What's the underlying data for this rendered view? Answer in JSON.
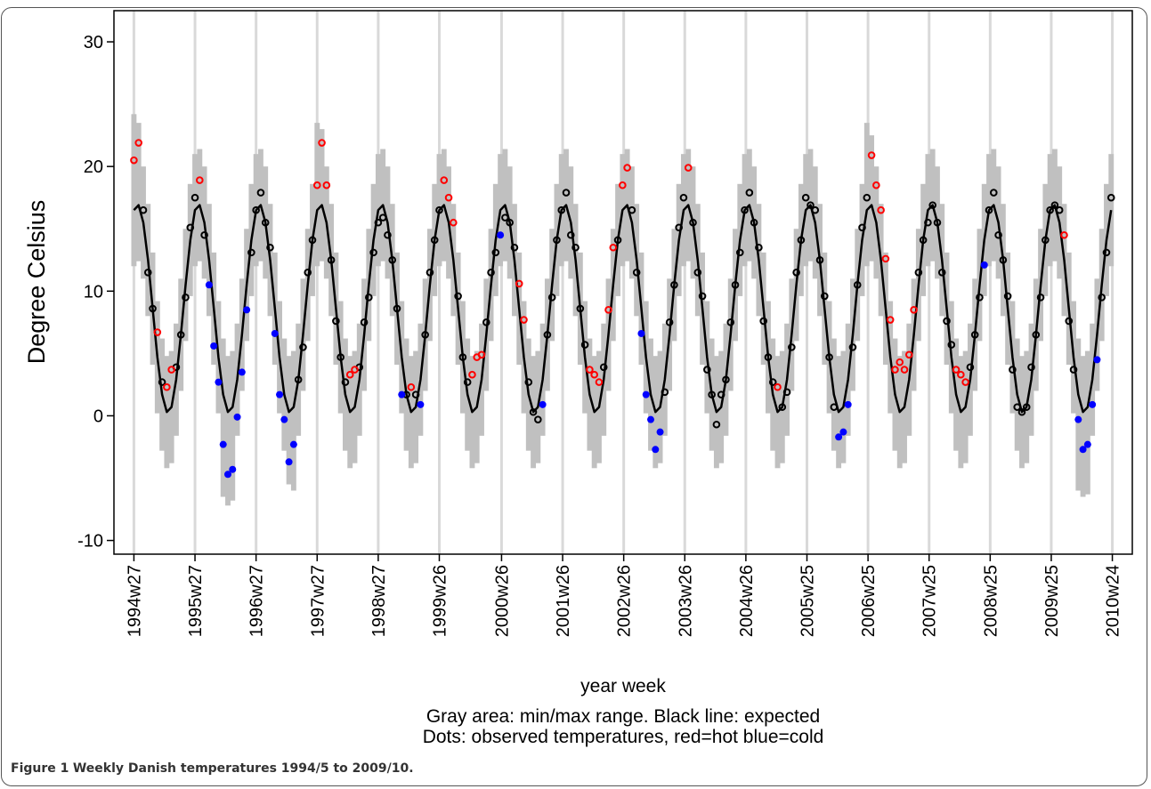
{
  "chart_data": {
    "type": "line",
    "y_label": "Degree Celsius",
    "x_label": "year week",
    "notes": [
      "Gray area: min/max range. Black line: expected",
      "Dots: observed temperatures, red=hot blue=cold"
    ],
    "xlim": [
      -17,
      850
    ],
    "ylim": [
      -11.1,
      32.5
    ],
    "grid": "x",
    "grid_color": "#d9d9d9",
    "xticks": [
      {
        "value": 0,
        "label": "1994w27"
      },
      {
        "value": 52,
        "label": "1995w27"
      },
      {
        "value": 104,
        "label": "1996w27"
      },
      {
        "value": 156,
        "label": "1997w27"
      },
      {
        "value": 208,
        "label": "1998w27"
      },
      {
        "value": 260,
        "label": "1999w26"
      },
      {
        "value": 313,
        "label": "2000w26"
      },
      {
        "value": 365,
        "label": "2001w26"
      },
      {
        "value": 417,
        "label": "2002w26"
      },
      {
        "value": 469,
        "label": "2003w26"
      },
      {
        "value": 521,
        "label": "2004w26"
      },
      {
        "value": 573,
        "label": "2005w25"
      },
      {
        "value": 625,
        "label": "2006w25"
      },
      {
        "value": 677,
        "label": "2007w25"
      },
      {
        "value": 729,
        "label": "2008w25"
      },
      {
        "value": 781,
        "label": "2009w25"
      },
      {
        "value": 833,
        "label": "2010w24"
      }
    ],
    "yticks": [
      -10,
      0,
      10,
      20,
      30
    ],
    "expected": {
      "color": "#000000",
      "x": [
        0,
        4,
        8,
        12,
        16,
        20,
        24,
        28,
        32,
        36,
        40,
        44,
        48,
        52,
        56,
        60,
        64,
        68,
        72,
        76,
        80,
        84,
        88,
        92,
        96,
        100,
        104,
        108,
        112,
        116,
        120,
        124,
        128,
        132,
        136,
        140,
        144,
        148,
        152,
        156,
        160,
        164,
        168,
        172,
        176,
        180,
        184,
        188,
        192,
        196,
        200,
        204,
        208,
        212,
        216,
        220,
        224,
        228,
        232,
        236,
        240,
        244,
        248,
        252,
        256,
        260,
        264,
        268,
        272,
        276,
        280,
        284,
        288,
        292,
        296,
        300,
        304,
        308,
        312,
        316,
        320,
        324,
        328,
        332,
        336,
        340,
        344,
        348,
        352,
        356,
        360,
        364,
        368,
        372,
        376,
        380,
        384,
        388,
        392,
        396,
        400,
        404,
        408,
        412,
        416,
        420,
        424,
        428,
        432,
        436,
        440,
        444,
        448,
        452,
        456,
        460,
        464,
        468,
        472,
        476,
        480,
        484,
        488,
        492,
        496,
        500,
        504,
        508,
        512,
        516,
        520,
        524,
        528,
        532,
        536,
        540,
        544,
        548,
        552,
        556,
        560,
        564,
        568,
        572,
        576,
        580,
        584,
        588,
        592,
        596,
        600,
        604,
        608,
        612,
        616,
        620,
        624,
        628,
        632,
        636,
        640,
        644,
        648,
        652,
        656,
        660,
        664,
        668,
        672,
        676,
        680,
        684,
        688,
        692,
        696,
        700,
        704,
        708,
        712,
        716,
        720,
        724,
        728,
        732,
        736,
        740,
        744,
        748,
        752,
        756,
        760,
        764,
        768,
        772,
        776,
        780,
        784,
        788,
        792,
        796,
        800,
        804,
        808,
        812,
        816,
        820,
        824,
        828,
        832
      ],
      "values": [
        16.5,
        16.9,
        15.5,
        12.5,
        8.6,
        4.7,
        1.7,
        0.3,
        0.7,
        2.9,
        6.5,
        10.5,
        14.1,
        16.5,
        16.9,
        15.5,
        12.5,
        8.6,
        4.7,
        1.7,
        0.3,
        0.7,
        2.9,
        6.5,
        10.5,
        14.1,
        16.5,
        16.9,
        15.5,
        12.5,
        8.6,
        4.7,
        1.7,
        0.3,
        0.7,
        2.9,
        6.5,
        10.5,
        14.1,
        16.5,
        16.9,
        15.5,
        12.5,
        8.6,
        4.7,
        1.7,
        0.3,
        0.7,
        2.9,
        6.5,
        10.5,
        14.1,
        16.5,
        16.9,
        15.5,
        12.5,
        8.6,
        4.7,
        1.7,
        0.3,
        0.7,
        2.9,
        6.5,
        10.5,
        14.1,
        16.5,
        16.9,
        15.5,
        12.5,
        8.6,
        4.7,
        1.7,
        0.3,
        0.7,
        2.9,
        6.5,
        10.5,
        14.1,
        16.5,
        16.9,
        15.5,
        12.5,
        8.6,
        4.7,
        1.7,
        0.3,
        0.7,
        2.9,
        6.5,
        10.5,
        14.1,
        16.5,
        16.9,
        15.5,
        12.5,
        8.6,
        4.7,
        1.7,
        0.3,
        0.7,
        2.9,
        6.5,
        10.5,
        14.1,
        16.5,
        16.9,
        15.5,
        12.5,
        8.6,
        4.7,
        1.7,
        0.3,
        0.7,
        2.9,
        6.5,
        10.5,
        14.1,
        16.5,
        16.9,
        15.5,
        12.5,
        8.6,
        4.7,
        1.7,
        0.3,
        0.7,
        2.9,
        6.5,
        10.5,
        14.1,
        16.5,
        16.9,
        15.5,
        12.5,
        8.6,
        4.7,
        1.7,
        0.3,
        0.7,
        2.9,
        6.5,
        10.5,
        14.1,
        16.5,
        16.9,
        15.5,
        12.5,
        8.6,
        4.7,
        1.7,
        0.3,
        0.7,
        2.9,
        6.5,
        10.5,
        14.1,
        16.5,
        16.9,
        15.5,
        12.5,
        8.6,
        4.7,
        1.7,
        0.3,
        0.7,
        2.9,
        6.5,
        10.5,
        14.1,
        16.5,
        16.9,
        15.5,
        12.5,
        8.6,
        4.7,
        1.7,
        0.3,
        0.7,
        2.9,
        6.5,
        10.5,
        14.1,
        16.5,
        16.9,
        15.5,
        12.5,
        8.6,
        4.7,
        1.7,
        0.3,
        0.7,
        2.9,
        6.5,
        10.5,
        14.1,
        16.5,
        16.9,
        15.5,
        12.5,
        8.6,
        4.7,
        1.7,
        0.3,
        0.7,
        2.9,
        6.5,
        10.5,
        14.1,
        16.5
      ]
    },
    "range": {
      "color": "#c0c0c0",
      "max": [
        24.2,
        23.5,
        20.0,
        17.0,
        13.1,
        9.2,
        6.2,
        4.8,
        5.2,
        7.4,
        11.0,
        15.0,
        18.6,
        21.0,
        21.4,
        20.0,
        17.0,
        13.1,
        9.2,
        6.2,
        4.8,
        5.2,
        7.4,
        11.0,
        15.0,
        18.6,
        21.0,
        21.4,
        20.0,
        17.0,
        13.1,
        9.2,
        6.2,
        4.8,
        5.2,
        7.4,
        11.0,
        15.0,
        18.6,
        23.5,
        23.0,
        20.0,
        17.0,
        13.1,
        9.2,
        6.2,
        4.8,
        5.2,
        7.4,
        11.0,
        15.0,
        18.6,
        21.0,
        21.4,
        20.0,
        17.0,
        13.1,
        9.2,
        6.2,
        4.8,
        5.2,
        7.4,
        11.0,
        15.0,
        18.6,
        21.0,
        21.4,
        20.0,
        17.0,
        13.1,
        9.2,
        6.2,
        4.8,
        5.2,
        7.4,
        11.0,
        15.0,
        18.6,
        21.0,
        21.4,
        20.0,
        17.0,
        13.1,
        9.2,
        6.2,
        4.8,
        5.2,
        7.4,
        11.0,
        15.0,
        18.6,
        21.0,
        21.4,
        20.0,
        17.0,
        13.1,
        9.2,
        6.2,
        4.8,
        5.2,
        7.4,
        11.0,
        15.0,
        18.6,
        21.0,
        21.4,
        20.0,
        17.0,
        13.1,
        9.2,
        6.2,
        4.8,
        5.2,
        7.4,
        11.0,
        15.0,
        18.6,
        21.0,
        21.4,
        20.0,
        17.0,
        13.1,
        9.2,
        6.2,
        4.8,
        5.2,
        7.4,
        11.0,
        15.0,
        18.6,
        21.0,
        21.4,
        20.0,
        17.0,
        13.1,
        9.2,
        6.2,
        4.8,
        5.2,
        7.4,
        11.0,
        15.0,
        18.6,
        21.0,
        21.4,
        20.0,
        17.0,
        13.1,
        9.2,
        6.2,
        4.8,
        5.2,
        7.4,
        11.0,
        15.0,
        18.6,
        23.5,
        22.5,
        20.0,
        17.0,
        13.1,
        9.2,
        6.2,
        4.8,
        5.2,
        7.4,
        11.0,
        15.0,
        18.6,
        21.0,
        21.4,
        20.0,
        17.0,
        13.1,
        9.2,
        6.2,
        4.8,
        5.2,
        7.4,
        11.0,
        15.0,
        18.6,
        21.0,
        21.4,
        20.0,
        17.0,
        13.1,
        9.2,
        6.2,
        4.8,
        5.2,
        7.4,
        11.0,
        15.0,
        18.6,
        21.0,
        21.4,
        20.0,
        17.0,
        13.1,
        9.2,
        6.2,
        4.8,
        5.2,
        7.4,
        11.0,
        15.0,
        18.6,
        21.0
      ],
      "min": [
        12.0,
        12.4,
        11.0,
        8.0,
        4.1,
        0.2,
        -2.8,
        -4.2,
        -3.8,
        -1.6,
        2.0,
        6.0,
        9.6,
        12.0,
        12.4,
        11.0,
        8.0,
        4.1,
        0.2,
        -6.5,
        -7.2,
        -6.8,
        -1.6,
        2.0,
        6.0,
        9.6,
        12.0,
        12.4,
        11.0,
        8.0,
        4.1,
        0.2,
        -2.8,
        -5.5,
        -6.0,
        -1.6,
        2.0,
        6.0,
        9.6,
        12.0,
        12.4,
        11.0,
        8.0,
        4.1,
        0.2,
        -2.8,
        -4.2,
        -3.8,
        -1.6,
        2.0,
        6.0,
        9.6,
        12.0,
        12.4,
        11.0,
        8.0,
        4.1,
        0.2,
        -2.8,
        -4.2,
        -3.8,
        -1.6,
        2.0,
        6.0,
        9.6,
        12.0,
        12.4,
        11.0,
        8.0,
        4.1,
        0.2,
        -2.8,
        -4.2,
        -3.8,
        -1.6,
        2.0,
        6.0,
        9.6,
        12.0,
        12.4,
        11.0,
        8.0,
        4.1,
        0.2,
        -2.8,
        -4.2,
        -3.8,
        -1.6,
        2.0,
        6.0,
        9.6,
        12.0,
        12.4,
        11.0,
        8.0,
        4.1,
        0.2,
        -2.8,
        -4.2,
        -3.8,
        -1.6,
        2.0,
        6.0,
        9.6,
        12.0,
        12.4,
        11.0,
        8.0,
        4.1,
        0.2,
        -2.8,
        -4.2,
        -3.8,
        -1.6,
        2.0,
        6.0,
        9.6,
        12.0,
        12.4,
        11.0,
        8.0,
        4.1,
        0.2,
        -2.8,
        -4.2,
        -3.8,
        -1.6,
        2.0,
        6.0,
        9.6,
        12.0,
        12.4,
        11.0,
        8.0,
        4.1,
        0.2,
        -2.8,
        -4.2,
        -3.8,
        -1.6,
        2.0,
        6.0,
        9.6,
        12.0,
        12.4,
        11.0,
        8.0,
        4.1,
        0.2,
        -2.8,
        -4.2,
        -3.8,
        -1.6,
        2.0,
        6.0,
        9.6,
        12.0,
        12.4,
        11.0,
        8.0,
        4.1,
        0.2,
        -2.8,
        -4.2,
        -3.8,
        -1.6,
        2.0,
        6.0,
        9.6,
        12.0,
        12.4,
        11.0,
        8.0,
        4.1,
        0.2,
        -2.8,
        -4.2,
        -3.8,
        -1.6,
        2.0,
        6.0,
        9.6,
        12.0,
        12.4,
        11.0,
        8.0,
        4.1,
        0.2,
        -2.8,
        -4.2,
        -3.8,
        -1.6,
        2.0,
        6.0,
        9.6,
        12.0,
        12.4,
        11.0,
        8.0,
        4.1,
        0.2,
        -6.0,
        -6.5,
        -6.3,
        -1.6,
        2.0,
        6.0,
        9.6,
        12.0
      ]
    },
    "observed": [
      {
        "color": "#000000",
        "marker": "open",
        "x": [
          8,
          12,
          16,
          24,
          36,
          40,
          44,
          48,
          52,
          60,
          100,
          104,
          108,
          112,
          116,
          140,
          144,
          148,
          152,
          168,
          172,
          176,
          180,
          192,
          196,
          200,
          204,
          208,
          212,
          216,
          220,
          224,
          232,
          240,
          248,
          252,
          256,
          260,
          276,
          280,
          284,
          300,
          304,
          308,
          316,
          320,
          324,
          336,
          340,
          344,
          352,
          356,
          360,
          364,
          368,
          372,
          376,
          380,
          384,
          400,
          412,
          424,
          428,
          452,
          456,
          460,
          464,
          468,
          476,
          480,
          484,
          488,
          492,
          496,
          500,
          504,
          508,
          512,
          516,
          520,
          524,
          528,
          532,
          536,
          540,
          544,
          552,
          556,
          560,
          564,
          568,
          572,
          576,
          580,
          584,
          588,
          592,
          596,
          612,
          616,
          620,
          624,
          668,
          672,
          676,
          680,
          684,
          688,
          692,
          696,
          712,
          716,
          720,
          728,
          732,
          736,
          740,
          744,
          748,
          752,
          756,
          760,
          764,
          768,
          772,
          776,
          780,
          784,
          788,
          796,
          800,
          824,
          828,
          832
        ],
        "values": [
          16.5,
          11.5,
          8.6,
          2.7,
          3.9,
          6.5,
          9.5,
          15.1,
          17.5,
          14.5,
          13.1,
          16.5,
          17.9,
          15.5,
          13.5,
          2.9,
          5.5,
          11.5,
          14.1,
          12.5,
          7.6,
          4.7,
          2.7,
          3.9,
          7.5,
          9.5,
          13.1,
          15.5,
          15.9,
          14.5,
          12.5,
          8.6,
          1.7,
          1.7,
          6.5,
          11.5,
          14.1,
          16.5,
          9.6,
          4.7,
          2.7,
          7.5,
          11.5,
          13.1,
          15.9,
          15.5,
          13.5,
          2.7,
          0.3,
          -0.3,
          6.5,
          9.5,
          14.1,
          16.5,
          17.9,
          14.5,
          13.5,
          8.6,
          5.7,
          3.9,
          14.1,
          16.5,
          11.5,
          1.9,
          7.5,
          10.5,
          15.1,
          17.5,
          15.5,
          11.5,
          9.6,
          3.7,
          1.7,
          -0.7,
          1.7,
          2.9,
          7.5,
          10.5,
          13.1,
          16.5,
          17.9,
          15.5,
          13.5,
          7.6,
          4.7,
          2.7,
          0.7,
          1.9,
          5.5,
          11.5,
          14.1,
          17.5,
          16.9,
          16.5,
          12.5,
          9.6,
          4.7,
          0.7,
          5.5,
          10.5,
          15.1,
          17.5,
          11.5,
          14.1,
          15.5,
          16.9,
          15.5,
          11.5,
          7.6,
          5.7,
          3.9,
          6.5,
          9.5,
          16.5,
          17.9,
          14.5,
          12.5,
          9.6,
          3.7,
          0.7,
          0.3,
          0.7,
          3.9,
          6.5,
          9.5,
          14.1,
          16.5,
          16.9,
          16.5,
          7.6,
          3.7,
          9.5,
          13.1,
          17.5
        ]
      },
      {
        "color": "#ff0000",
        "marker": "open",
        "x": [
          0,
          4,
          20,
          28,
          32,
          56,
          156,
          160,
          164,
          184,
          188,
          236,
          264,
          268,
          272,
          288,
          292,
          296,
          328,
          332,
          388,
          392,
          396,
          404,
          408,
          416,
          420,
          472,
          548,
          628,
          632,
          636,
          640,
          644,
          648,
          652,
          656,
          660,
          664,
          700,
          704,
          708,
          792
        ],
        "values": [
          20.5,
          21.9,
          6.7,
          2.3,
          3.7,
          18.9,
          18.5,
          21.9,
          18.5,
          3.3,
          3.7,
          2.3,
          18.9,
          17.5,
          15.5,
          3.3,
          4.7,
          4.9,
          10.6,
          7.7,
          3.7,
          3.3,
          2.7,
          8.5,
          13.5,
          18.5,
          19.9,
          19.9,
          2.3,
          20.9,
          18.5,
          16.5,
          12.6,
          7.7,
          3.7,
          4.3,
          3.7,
          4.9,
          8.5,
          3.7,
          3.3,
          2.7,
          14.5
        ]
      },
      {
        "color": "#0000ff",
        "marker": "filled",
        "x": [
          64,
          68,
          72,
          76,
          80,
          84,
          88,
          92,
          96,
          120,
          124,
          128,
          132,
          136,
          228,
          244,
          312,
          348,
          432,
          436,
          440,
          444,
          448,
          600,
          604,
          608,
          724,
          804,
          808,
          812,
          816,
          820
        ],
        "values": [
          10.5,
          5.6,
          2.7,
          -2.3,
          -4.7,
          -4.3,
          -0.1,
          3.5,
          8.5,
          6.6,
          1.7,
          -0.3,
          -3.7,
          -2.3,
          1.7,
          0.9,
          14.5,
          0.9,
          6.6,
          1.7,
          -0.3,
          -2.7,
          -1.3,
          -1.7,
          -1.3,
          0.9,
          12.1,
          -0.3,
          -2.7,
          -2.3,
          0.9,
          4.5
        ]
      }
    ]
  },
  "caption": {
    "label": "Figure 1",
    "text": "Weekly Danish temperatures 1994/5 to 2009/10."
  }
}
